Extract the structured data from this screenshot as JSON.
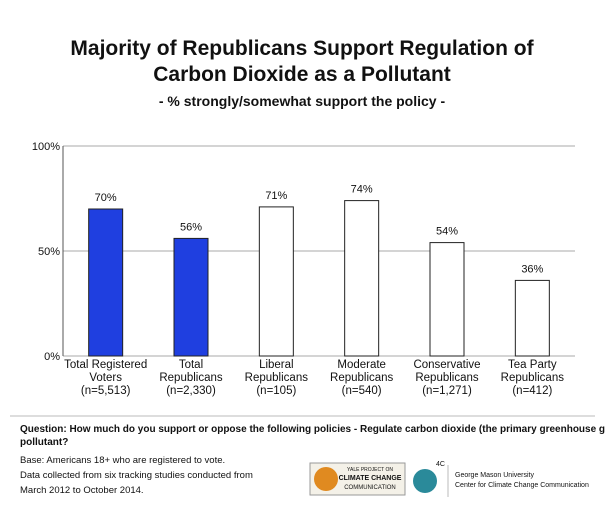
{
  "chart_data": {
    "type": "bar",
    "title": [
      "Majority of Republicans Support Regulation of",
      "Carbon Dioxide as a Pollutant"
    ],
    "subtitle": "- % strongly/somewhat support the policy -",
    "categories": [
      [
        "Total Registered",
        "Voters",
        "(n=5,513)"
      ],
      [
        "Total",
        "Republicans",
        "(n=2,330)"
      ],
      [
        "Liberal",
        "Republicans",
        "(n=105)"
      ],
      [
        "Moderate",
        "Republicans",
        "(n=540)"
      ],
      [
        "Conservative",
        "Republicans",
        "(n=1,271)"
      ],
      [
        "Tea Party",
        "Republicans",
        "(n=412)"
      ]
    ],
    "values": [
      70,
      56,
      71,
      74,
      54,
      36
    ],
    "value_labels": [
      "70%",
      "56%",
      "71%",
      "74%",
      "54%",
      "36%"
    ],
    "colors": [
      "#1f3fe0",
      "#1f3fe0",
      "#ffffff",
      "#ffffff",
      "#ffffff",
      "#ffffff"
    ],
    "ylim": [
      0,
      100
    ],
    "yticks": [
      {
        "value": 0,
        "label": "0%"
      },
      {
        "value": 50,
        "label": "50%"
      },
      {
        "value": 100,
        "label": "100%"
      }
    ],
    "grid": true
  },
  "footer": {
    "question": [
      "Question: How much do you support or oppose the following policies - Regulate carbon dioxide (the primary greenhouse gas) as a",
      "pollutant?"
    ],
    "notes": [
      "Base: Americans 18+ who are registered to vote.",
      "Data collected from six tracking studies conducted from",
      "March 2012 to October 2014."
    ],
    "logos": {
      "yale": [
        "YALE PROJECT ON",
        "CLIMATE CHANGE",
        "COMMUNICATION"
      ],
      "fourc": "4C",
      "gmu": [
        "George Mason University",
        "Center for Climate Change Communication"
      ]
    }
  }
}
